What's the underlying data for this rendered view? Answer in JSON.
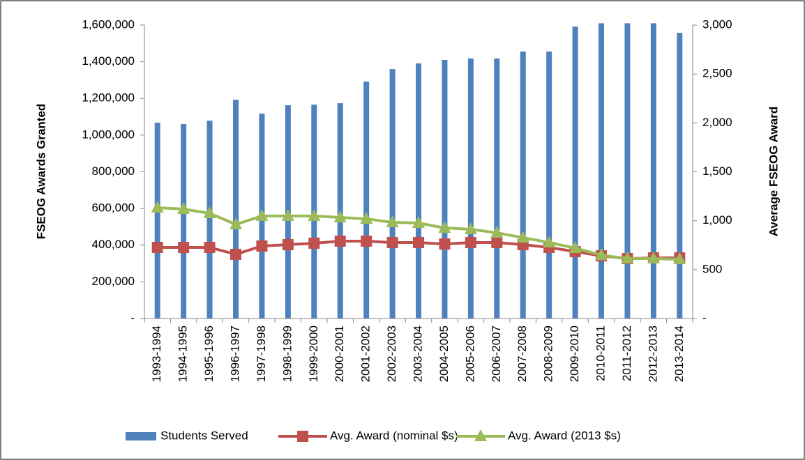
{
  "chart_data": {
    "type": "bar_line",
    "ylabel": "FSEOG Awards Granted",
    "y2label": "Average FSEOG Award",
    "categories": [
      "1993-1994",
      "1994-1995",
      "1995-1996",
      "1996-1997",
      "1997-1998",
      "1998-1999",
      "1999-2000",
      "2000-2001",
      "2001-2002",
      "2002-2003",
      "2003-2004",
      "2004-2005",
      "2005-2006",
      "2006-2007",
      "2007-2008",
      "2008-2009",
      "2009-2010",
      "2010-2011",
      "2011-2012",
      "2012-2013",
      "2013-2014"
    ],
    "series": [
      {
        "name": "Students Served",
        "type": "bar",
        "color": "#4f81bd",
        "values": [
          1068000,
          1060000,
          1079000,
          1193000,
          1117000,
          1163000,
          1166000,
          1174000,
          1292000,
          1360000,
          1391000,
          1410000,
          1418000,
          1418000,
          1456000,
          1456000,
          1592000,
          1610000,
          1610000,
          1610000,
          1558000
        ]
      },
      {
        "name": "Avg. Award (nominal $s)",
        "type": "line",
        "marker": "square",
        "axis": "y2",
        "color": "#c0504d",
        "values": [
          727,
          727,
          727,
          656,
          741,
          755,
          770,
          791,
          791,
          777,
          777,
          762,
          777,
          777,
          755,
          727,
          684,
          641,
          613,
          620,
          620
        ]
      },
      {
        "name": "Avg. Award (2013 $s)",
        "type": "line",
        "marker": "triangle",
        "axis": "y2",
        "color": "#9bbb59",
        "values": [
          1133,
          1119,
          1076,
          962,
          1048,
          1048,
          1048,
          1033,
          1019,
          983,
          976,
          926,
          912,
          876,
          827,
          777,
          720,
          648,
          613,
          613,
          606
        ]
      }
    ],
    "ylim": [
      0,
      1600000
    ],
    "yticks": [
      {
        "value": 0,
        "label": "-"
      },
      {
        "value": 200000,
        "label": "200,000"
      },
      {
        "value": 400000,
        "label": "400,000"
      },
      {
        "value": 600000,
        "label": "600,000"
      },
      {
        "value": 800000,
        "label": "800,000"
      },
      {
        "value": 1000000,
        "label": "1,000,000"
      },
      {
        "value": 1200000,
        "label": "1,200,000"
      },
      {
        "value": 1400000,
        "label": "1,400,000"
      },
      {
        "value": 1600000,
        "label": "1,600,000"
      }
    ],
    "y2lim": [
      0,
      3000
    ],
    "y2ticks": [
      {
        "value": 0,
        "label": "-"
      },
      500,
      {
        "value": 1000,
        "label": "1,000"
      },
      {
        "value": 1500,
        "label": "1,500"
      },
      {
        "value": 2000,
        "label": "2,000"
      },
      {
        "value": 2500,
        "label": "2,500"
      },
      {
        "value": 3000,
        "label": "3,000"
      }
    ],
    "grid": false,
    "legend": "bottom"
  }
}
